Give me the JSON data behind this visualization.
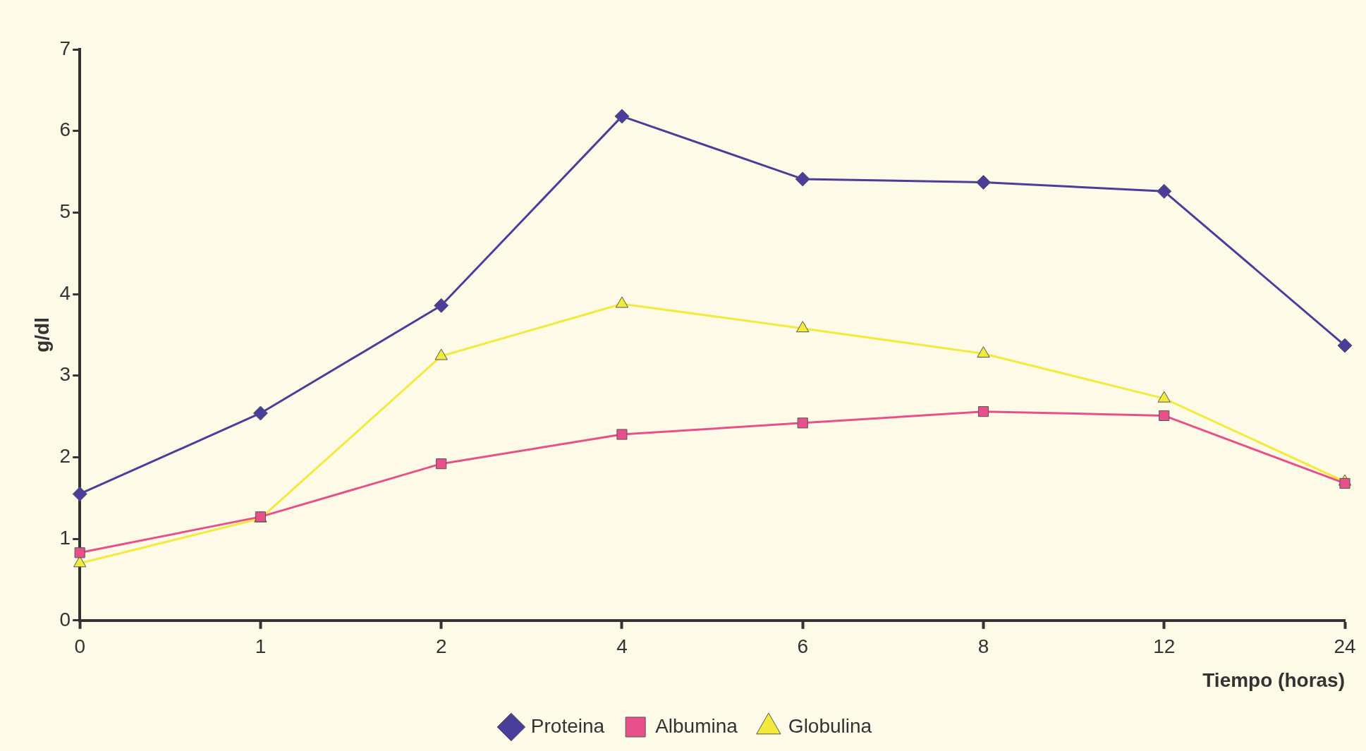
{
  "chart_data": {
    "type": "line",
    "ylabel": "g/dl",
    "xlabel": "Tiempo (horas)",
    "categories": [
      "0",
      "1",
      "2",
      "4",
      "6",
      "8",
      "12",
      "24"
    ],
    "ylim": [
      0,
      7
    ],
    "yticks": [
      0,
      1,
      2,
      3,
      4,
      5,
      6,
      7
    ],
    "grid": false,
    "legend": "bottom",
    "series": [
      {
        "name": "Proteina",
        "color": "#4b3d9a",
        "marker": "diamond",
        "values": [
          1.55,
          2.54,
          3.86,
          6.18,
          5.41,
          5.37,
          5.26,
          3.37
        ]
      },
      {
        "name": "Albumina",
        "color": "#e8508a",
        "marker": "square",
        "values": [
          0.83,
          1.27,
          1.92,
          2.28,
          2.42,
          2.56,
          2.51,
          1.68
        ]
      },
      {
        "name": "Globulina",
        "color": "#f2ea3c",
        "marker": "triangle",
        "values": [
          0.7,
          1.25,
          3.24,
          3.88,
          3.58,
          3.27,
          2.72,
          1.7
        ]
      }
    ]
  }
}
